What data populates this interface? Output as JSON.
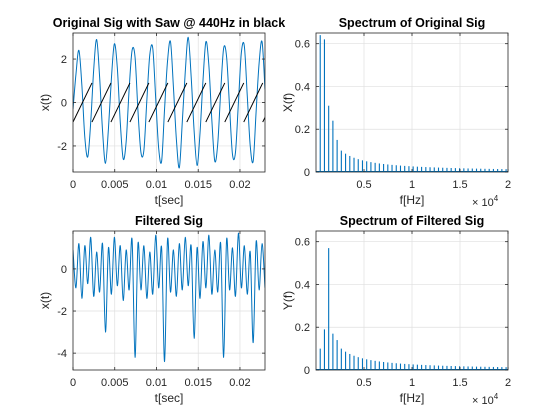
{
  "colors": {
    "series": "#0072BD",
    "saw": "#000000",
    "grid": "#DFDFDF",
    "axes": "#262626",
    "background": "#FFFFFF"
  },
  "chart_data": [
    {
      "id": "p1",
      "type": "line",
      "title": "Original Sig with Saw @ 440Hz in black",
      "xlabel": "t[sec]",
      "ylabel": "x(t)",
      "xlim": [
        0,
        0.023
      ],
      "ylim": [
        -3.2,
        3.2
      ],
      "grid": true,
      "x_ticks": [
        0,
        0.005,
        0.01,
        0.015,
        0.02
      ],
      "x_tick_labels": [
        "0",
        "0.005",
        "0.01",
        "0.015",
        "0.02"
      ],
      "y_ticks": [
        -2,
        0,
        2
      ],
      "y_tick_labels": [
        "-2",
        "0",
        "2"
      ],
      "series": [
        {
          "color": "#0072BD",
          "values": [
            -0.3,
            1.3,
            2.4,
            0.8,
            -1.6,
            -2.5,
            -0.9,
            1.5,
            2.9,
            1.2,
            -1.3,
            -2.8,
            -1.2,
            1.1,
            2.7,
            1.6,
            -0.9,
            -2.6,
            -1.8,
            0.6,
            2.4,
            2.1,
            -0.4,
            -2.3,
            -2.2,
            0.1,
            2.2,
            2.5,
            0.2,
            -2.1,
            -2.7,
            -0.3,
            1.9,
            2.8,
            0.7,
            -1.7,
            -3.0,
            -0.9,
            1.4,
            3.0,
            1.2,
            -1.3,
            -2.9,
            -1.4,
            1.0,
            2.8,
            1.7,
            -0.8,
            -2.7,
            -1.9,
            0.5,
            2.5,
            2.1,
            -0.2,
            -2.4,
            -2.3,
            0.0,
            2.3,
            2.6,
            0.3,
            -2.0,
            -2.7,
            -0.4,
            1.8,
            2.8,
            0.6
          ],
          "x_start": 0,
          "x_end": 0.023
        },
        {
          "color": "#000000",
          "type": "sawtooth",
          "frequency_hz": 440,
          "amplitude": 0.9
        }
      ]
    },
    {
      "id": "p2",
      "type": "bar",
      "title": "Spectrum of Original Sig",
      "xlabel": "f[Hz]",
      "ylabel": "X(f)",
      "x_exponent_label": "× 10",
      "x_exponent": "4",
      "xlim": [
        0,
        20000
      ],
      "ylim": [
        0,
        0.65
      ],
      "grid": true,
      "x_ticks": [
        5000,
        10000,
        15000,
        20000
      ],
      "x_tick_labels": [
        "0.5",
        "1",
        "1.5",
        "2"
      ],
      "y_ticks": [
        0,
        0.2,
        0.4,
        0.6
      ],
      "y_tick_labels": [
        "0",
        "0.2",
        "0.4",
        "0.6"
      ],
      "peaks": [
        {
          "f": 440,
          "value": 0.64
        },
        {
          "f": 880,
          "value": 0.62
        },
        {
          "f": 1320,
          "value": 0.31
        },
        {
          "f": 1760,
          "value": 0.24
        },
        {
          "f": 2200,
          "value": 0.15
        }
      ],
      "harmonics": {
        "fundamental_hz": 440,
        "from_harmonic": 6,
        "to_hz": 20000,
        "amplitude_numerator": 0.6
      }
    },
    {
      "id": "p3",
      "type": "line",
      "title": "Filtered Sig",
      "xlabel": "t[sec]",
      "ylabel": "x(t)",
      "xlim": [
        0,
        0.023
      ],
      "ylim": [
        -4.8,
        1.8
      ],
      "grid": true,
      "x_ticks": [
        0,
        0.005,
        0.01,
        0.015,
        0.02
      ],
      "x_tick_labels": [
        "0",
        "0.005",
        "0.01",
        "0.015",
        "0.02"
      ],
      "y_ticks": [
        -4,
        -2,
        0
      ],
      "y_tick_labels": [
        "-4",
        "-2",
        "0"
      ],
      "series": [
        {
          "color": "#0072BD",
          "values": [
            0.9,
            -0.9,
            1.2,
            -1.4,
            1.1,
            -0.7,
            1.5,
            -1.3,
            0.8,
            -1.1,
            1.2,
            -3.0,
            1.0,
            -1.2,
            1.5,
            -0.8,
            1.1,
            -1.5,
            0.9,
            -1.0,
            1.4,
            -4.2,
            1.2,
            -1.0,
            1.1,
            -1.4,
            0.8,
            -1.2,
            1.6,
            -0.9,
            1.0,
            -4.4,
            1.4,
            -1.1,
            0.9,
            -1.3,
            1.2,
            -1.0,
            1.5,
            -0.8,
            1.1,
            -3.3,
            1.0,
            -1.4,
            1.3,
            -0.9,
            1.6,
            -1.2,
            0.9,
            -1.1,
            1.2,
            -4.2,
            1.4,
            -1.0,
            1.0,
            -1.3,
            1.7,
            -0.9,
            1.1,
            -1.2,
            0.8,
            -3.5,
            1.3,
            -1.0,
            1.2,
            -0.9
          ],
          "x_start": 0,
          "x_end": 0.023
        }
      ]
    },
    {
      "id": "p4",
      "type": "bar",
      "title": "Spectrum of Filtered Sig",
      "xlabel": "f[Hz]",
      "ylabel": "Y(f)",
      "x_exponent_label": "× 10",
      "x_exponent": "4",
      "xlim": [
        0,
        20000
      ],
      "ylim": [
        0,
        0.65
      ],
      "grid": true,
      "x_ticks": [
        5000,
        10000,
        15000,
        20000
      ],
      "x_tick_labels": [
        "0.5",
        "1",
        "1.5",
        "2"
      ],
      "y_ticks": [
        0,
        0.2,
        0.4,
        0.6
      ],
      "y_tick_labels": [
        "0",
        "0.2",
        "0.4",
        "0.6"
      ],
      "peaks": [
        {
          "f": 440,
          "value": 0.1
        },
        {
          "f": 880,
          "value": 0.19
        },
        {
          "f": 1320,
          "value": 0.57
        },
        {
          "f": 1760,
          "value": 0.17
        },
        {
          "f": 2200,
          "value": 0.14
        }
      ],
      "harmonics": {
        "fundamental_hz": 440,
        "from_harmonic": 6,
        "to_hz": 20000,
        "amplitude_numerator": 0.6
      }
    }
  ]
}
